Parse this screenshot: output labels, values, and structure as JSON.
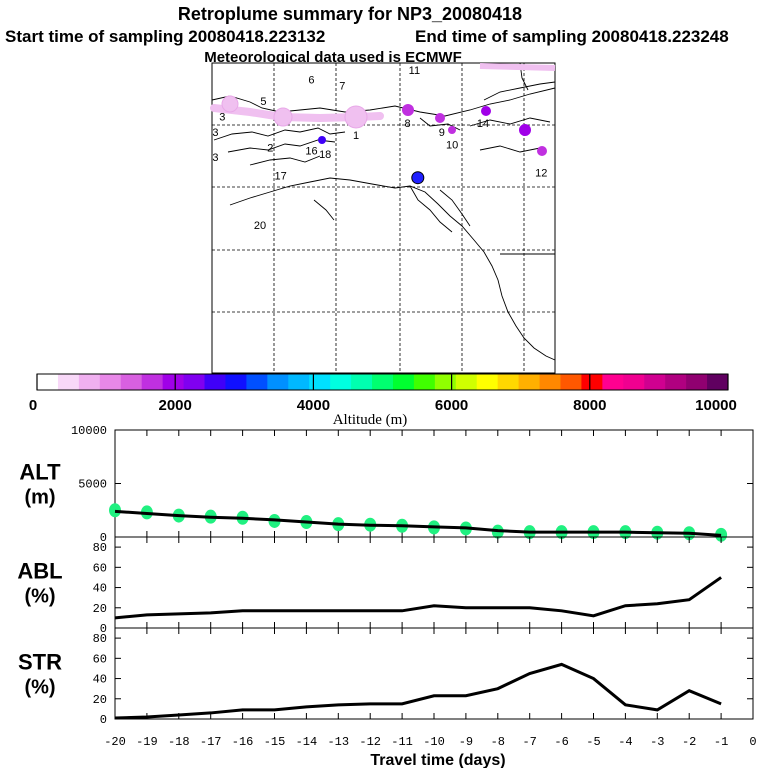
{
  "header": {
    "title": "Retroplume summary for NP3_20080418",
    "start_label": "Start time of sampling 20080418.223132",
    "end_label": "End time of sampling 20080418.223248",
    "met_label": "Meteorological data used is ECMWF"
  },
  "map": {
    "labels": [
      {
        "text": "1",
        "lon": 0.42,
        "lat": 0.22
      },
      {
        "text": "2",
        "lon": 0.17,
        "lat": 0.26
      },
      {
        "text": "3",
        "lon": 0.03,
        "lat": 0.16
      },
      {
        "text": "3",
        "lon": 0.01,
        "lat": 0.21
      },
      {
        "text": "3",
        "lon": 0.01,
        "lat": 0.29
      },
      {
        "text": "5",
        "lon": 0.15,
        "lat": 0.11
      },
      {
        "text": "6",
        "lon": 0.29,
        "lat": 0.04
      },
      {
        "text": "7",
        "lon": 0.38,
        "lat": 0.06
      },
      {
        "text": "8",
        "lon": 0.57,
        "lat": 0.18
      },
      {
        "text": "9",
        "lon": 0.67,
        "lat": 0.21
      },
      {
        "text": "10",
        "lon": 0.7,
        "lat": 0.25
      },
      {
        "text": "11",
        "lon": 0.59,
        "lat": 0.01
      },
      {
        "text": "12",
        "lon": 0.96,
        "lat": 0.34
      },
      {
        "text": "14",
        "lon": 0.79,
        "lat": 0.18
      },
      {
        "text": "16",
        "lon": 0.29,
        "lat": 0.27
      },
      {
        "text": "17",
        "lon": 0.2,
        "lat": 0.35
      },
      {
        "text": "18",
        "lon": 0.33,
        "lat": 0.28
      },
      {
        "text": "20",
        "lon": 0.14,
        "lat": 0.51
      }
    ],
    "release_point": {
      "lon": 0.6,
      "lat": 0.37
    }
  },
  "colorbar": {
    "ticks": [
      "0",
      "2000",
      "4000",
      "6000",
      "8000",
      "10000"
    ],
    "label": "Altitude (m)",
    "colors": [
      "#ffffff",
      "#f8d8f8",
      "#f0b0f0",
      "#e888e8",
      "#d860e0",
      "#c030e0",
      "#a000e8",
      "#8000f0",
      "#4000f8",
      "#1010ff",
      "#0050ff",
      "#0090ff",
      "#00b8ff",
      "#00e0ff",
      "#00ffe0",
      "#00ffb0",
      "#00ff70",
      "#00ff30",
      "#40ff00",
      "#90ff00",
      "#d0ff00",
      "#ffff00",
      "#ffd800",
      "#ffb000",
      "#ff8800",
      "#ff5800",
      "#ff0000",
      "#ff0090",
      "#f00090",
      "#d00090",
      "#b00080",
      "#900070",
      "#600060"
    ]
  },
  "chart_data": [
    {
      "type": "scatter",
      "name": "ALT",
      "ylabel": "ALT",
      "yunit": "(m)",
      "ylim": [
        0,
        10000
      ],
      "yticks": [
        "10000",
        "5000",
        "0"
      ],
      "x": [
        -20,
        -19,
        -18,
        -17,
        -16,
        -15,
        -14,
        -13,
        -12,
        -11,
        -10,
        -9,
        -8,
        -7,
        -6,
        -5,
        -4,
        -3,
        -2,
        -1
      ],
      "line": [
        2400,
        2200,
        2000,
        1850,
        1750,
        1600,
        1400,
        1200,
        1100,
        1050,
        950,
        850,
        600,
        450,
        450,
        450,
        450,
        400,
        350,
        150
      ],
      "dots": [
        2500,
        2300,
        2000,
        1900,
        1800,
        1500,
        1400,
        1200,
        1150,
        1050,
        900,
        800,
        500,
        450,
        450,
        450,
        450,
        400,
        350,
        200
      ]
    },
    {
      "type": "line",
      "name": "ABL",
      "ylabel": "ABL",
      "yunit": "(%)",
      "ylim": [
        0,
        90
      ],
      "yticks": [
        "80",
        "60",
        "40",
        "20",
        "0"
      ],
      "x": [
        -20,
        -19,
        -18,
        -17,
        -16,
        -15,
        -14,
        -13,
        -12,
        -11,
        -10,
        -9,
        -8,
        -7,
        -6,
        -5,
        -4,
        -3,
        -2,
        -1
      ],
      "values": [
        10,
        13,
        14,
        15,
        17,
        17,
        17,
        17,
        17,
        17,
        22,
        20,
        20,
        20,
        17,
        12,
        22,
        24,
        28,
        50
      ]
    },
    {
      "type": "line",
      "name": "STR",
      "ylabel": "STR",
      "yunit": "(%)",
      "ylim": [
        0,
        90
      ],
      "yticks": [
        "80",
        "60",
        "40",
        "20",
        "0"
      ],
      "x": [
        -20,
        -19,
        -18,
        -17,
        -16,
        -15,
        -14,
        -13,
        -12,
        -11,
        -10,
        -9,
        -8,
        -7,
        -6,
        -5,
        -4,
        -3,
        -2,
        -1
      ],
      "values": [
        1,
        2,
        4,
        6,
        9,
        9,
        12,
        14,
        15,
        15,
        23,
        23,
        30,
        45,
        54,
        40,
        14,
        9,
        28,
        15
      ]
    }
  ],
  "xaxis": {
    "ticks": [
      "-20",
      "-19",
      "-18",
      "-17",
      "-16",
      "-15",
      "-14",
      "-13",
      "-12",
      "-11",
      "-10",
      "-9",
      "-8",
      "-7",
      "-6",
      "-5",
      "-4",
      "-3",
      "-2",
      "-1",
      "0"
    ],
    "label": "Travel time (days)"
  }
}
